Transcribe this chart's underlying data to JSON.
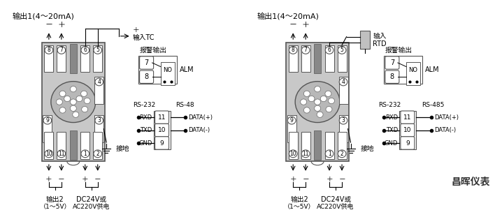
{
  "title_left": "输出1(4～20mA)",
  "title_right": "输出1(4～20mA)",
  "brand": "昌晖仪表",
  "left": {
    "input_tc": "输入TC",
    "ground": "接地",
    "output2": "输出2",
    "output2b": "（1～5V）",
    "dc": "DC24V或",
    "dcb": "AC220V供电",
    "alarm": "报警输出",
    "rs232": "RS-232",
    "rs48": "RS-48",
    "rxd": "RXD",
    "txd": "TXD",
    "gnd": "GND",
    "data_plus": "DATA(+)",
    "data_minus": "DATA(-)"
  },
  "right": {
    "input_rtd_1": "输入",
    "input_rtd_2": "RTD",
    "ground": "接地",
    "output2": "输出2",
    "output2b": "（1～5V）",
    "dc": "DC24V或",
    "dcb": "AC220V供电",
    "alarm": "报警输出",
    "rs232": "RS-232",
    "rs485": "RS-485",
    "rxd": "RXD",
    "txd": "TXD",
    "gnd": "GND",
    "data_plus": "DATA(+)",
    "data_minus": "DATA(-)"
  },
  "body_color": "#c8c8c8",
  "body_edge": "#555555",
  "pin_fill": "#ffffff",
  "pin_edge": "#555555",
  "slot_color": "#888888"
}
